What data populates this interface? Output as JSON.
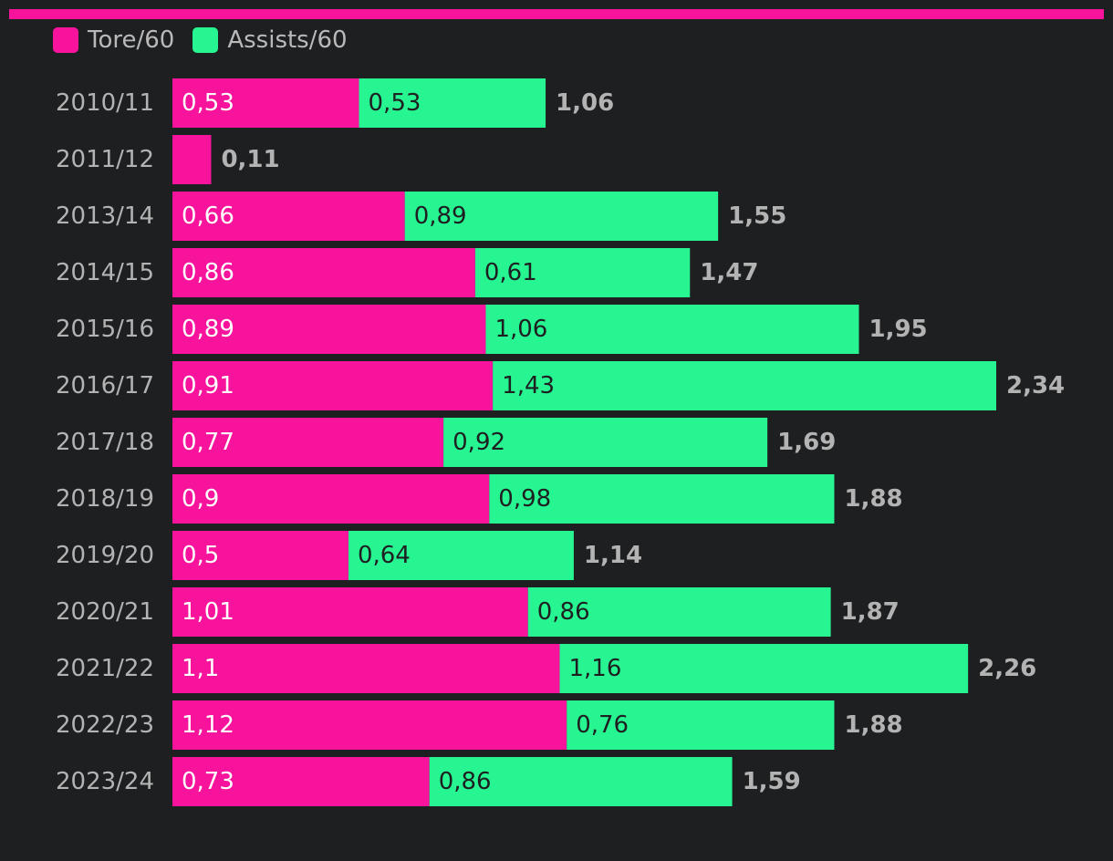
{
  "colors": {
    "background": "#1e1f21",
    "accent_bar": "#f7139c",
    "tore": "#f7139c",
    "assists": "#27f592",
    "label_gray": "#b3b3b3"
  },
  "legend": {
    "items": [
      {
        "label": "Tore/60",
        "color": "#f7139c"
      },
      {
        "label": "Assists/60",
        "color": "#27f592"
      }
    ]
  },
  "chart_data": {
    "type": "bar",
    "orientation": "horizontal",
    "stacked": true,
    "decimal_separator": ",",
    "categories": [
      "2010/11",
      "2011/12",
      "2013/14",
      "2014/15",
      "2015/16",
      "2016/17",
      "2017/18",
      "2018/19",
      "2019/20",
      "2020/21",
      "2021/22",
      "2022/23",
      "2023/24"
    ],
    "series": [
      {
        "name": "Tore/60",
        "color": "#f7139c",
        "values": [
          0.53,
          0.11,
          0.66,
          0.86,
          0.89,
          0.91,
          0.77,
          0.9,
          0.5,
          1.01,
          1.1,
          1.12,
          0.73
        ]
      },
      {
        "name": "Assists/60",
        "color": "#27f592",
        "values": [
          0.53,
          0,
          0.89,
          0.61,
          1.06,
          1.43,
          0.92,
          0.98,
          0.64,
          0.86,
          1.16,
          0.76,
          0.86
        ]
      }
    ],
    "totals": [
      1.06,
      0.11,
      1.55,
      1.47,
      1.95,
      2.34,
      1.69,
      1.88,
      1.14,
      1.87,
      2.26,
      1.88,
      1.59
    ],
    "title": "",
    "xlabel": "",
    "ylabel": "",
    "xlim": [
      0,
      2.34
    ],
    "grid": false,
    "legend_position": "top-left"
  }
}
